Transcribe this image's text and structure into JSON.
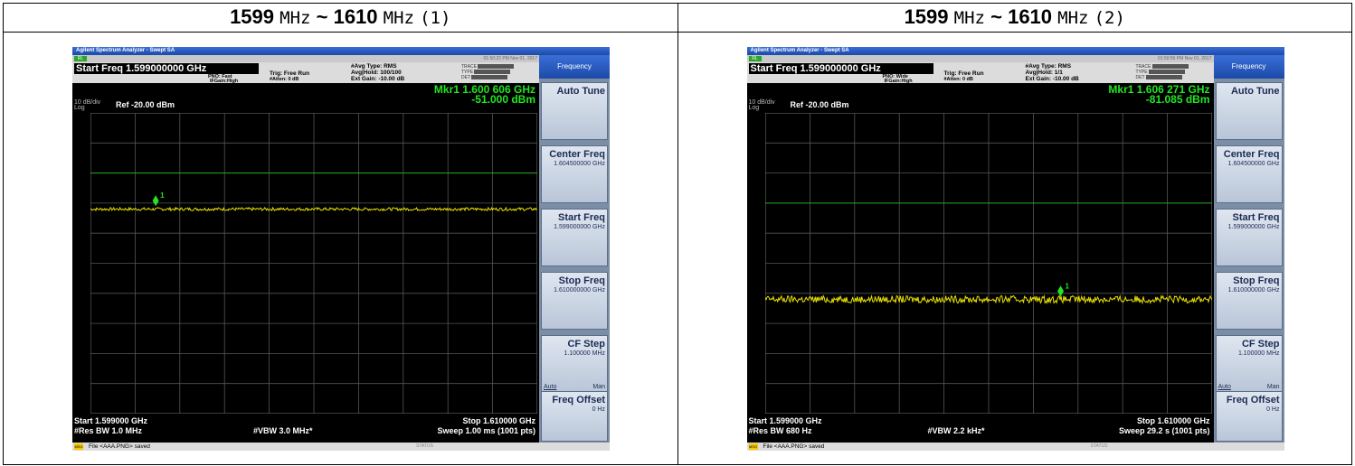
{
  "panels": [
    {
      "header_num_a": "1599",
      "header_unit_a": "MHz",
      "header_sep": "~",
      "header_num_b": "1610",
      "header_unit_b": "MHz",
      "header_index": "(1)",
      "app_title": "Agilent Spectrum Analyzer - Swept SA",
      "rl_label": "RL",
      "timestamp": "01:50:22 PM Nov 01, 2017",
      "start_freq_label": "Start Freq 1.599000000 GHz",
      "pno": "PNO: Fast",
      "ifgain": "IFGain:High",
      "trig": "Trig: Free Run",
      "atten": "#Atten: 0 dB",
      "avg_type": "#Avg Type: RMS",
      "avg_hold": "Avg|Hold: 100/100",
      "ext_gain": "Ext Gain: -10.00 dB",
      "trace_label": "TRACE",
      "type_label": "TYPE",
      "det_label": "DET",
      "mkr_freq": "Mkr1 1.600 606 GHz",
      "mkr_amp": "-51.000 dBm",
      "scale": "10 dB/div",
      "log": "Log",
      "ref": "Ref -20.00 dBm",
      "start_bottom": "Start 1.599000 GHz",
      "res_bw": "#Res BW 1.0 MHz",
      "vbw": "#VBW 3.0 MHz*",
      "stop_bottom": "Stop 1.610000 GHz",
      "sweep": "Sweep  1.00 ms (1001 pts)",
      "msg_text": "File <AAA.PNG> saved",
      "status_text": "STATUS",
      "softkey_header": "Frequency",
      "softkeys": [
        {
          "title": "Auto Tune",
          "value": ""
        },
        {
          "title": "Center Freq",
          "value": "1.604500000 GHz"
        },
        {
          "title": "Start Freq",
          "value": "1.599000000 GHz"
        },
        {
          "title": "Stop Freq",
          "value": "1.610000000 GHz"
        },
        {
          "title": "CF Step",
          "value": "1.100000 MHz",
          "auto": "Auto",
          "man": "Man"
        },
        {
          "title": "Freq Offset",
          "value": "0 Hz"
        }
      ],
      "chart_data": {
        "type": "line",
        "ref_level_dbm": -20,
        "db_per_div": 10,
        "ylim": [
          -120,
          -20
        ],
        "x_start_ghz": 1.599,
        "x_stop_ghz": 1.61,
        "noise_floor_dbm": -52,
        "noise_amplitude_db": 0.5,
        "limit_line_dbm": -40,
        "marker_x_ghz": 1.600606,
        "marker_y_dbm": -51.0
      }
    },
    {
      "header_num_a": "1599",
      "header_unit_a": "MHz",
      "header_sep": "~",
      "header_num_b": "1610",
      "header_unit_b": "MHz",
      "header_index": "(2)",
      "app_title": "Agilent Spectrum Analyzer - Swept SA",
      "rl_label": "RL",
      "timestamp": "01:50:56 PM Nov 01, 2017",
      "start_freq_label": "Start Freq 1.599000000 GHz",
      "pno": "PNO: Wide",
      "ifgain": "IFGain:High",
      "trig": "Trig: Free Run",
      "atten": "#Atten: 0 dB",
      "avg_type": "#Avg Type: RMS",
      "avg_hold": "Avg|Hold: 1/1",
      "ext_gain": "Ext Gain: -10.00 dB",
      "trace_label": "TRACE",
      "type_label": "TYPE",
      "det_label": "DET",
      "mkr_freq": "Mkr1 1.606 271 GHz",
      "mkr_amp": "-81.085 dBm",
      "scale": "10 dB/div",
      "log": "Log",
      "ref": "Ref -20.00 dBm",
      "start_bottom": "Start 1.599000 GHz",
      "res_bw": "#Res BW 680 Hz",
      "vbw": "#VBW 2.2 kHz*",
      "stop_bottom": "Stop 1.610000 GHz",
      "sweep": "Sweep  29.2 s (1001 pts)",
      "msg_text": "File <AAA.PNG> saved",
      "status_text": "STATUS",
      "softkey_header": "Frequency",
      "softkeys": [
        {
          "title": "Auto Tune",
          "value": ""
        },
        {
          "title": "Center Freq",
          "value": "1.604500000 GHz"
        },
        {
          "title": "Start Freq",
          "value": "1.599000000 GHz"
        },
        {
          "title": "Stop Freq",
          "value": "1.610000000 GHz"
        },
        {
          "title": "CF Step",
          "value": "1.100000 MHz",
          "auto": "Auto",
          "man": "Man"
        },
        {
          "title": "Freq Offset",
          "value": "0 Hz"
        }
      ],
      "chart_data": {
        "type": "line",
        "ref_level_dbm": -20,
        "db_per_div": 10,
        "ylim": [
          -120,
          -20
        ],
        "x_start_ghz": 1.599,
        "x_stop_ghz": 1.61,
        "noise_floor_dbm": -82,
        "noise_amplitude_db": 1.2,
        "limit_line_dbm": -50,
        "marker_x_ghz": 1.606271,
        "marker_y_dbm": -81.085
      }
    }
  ],
  "colors": {
    "trace": "#e8e000",
    "limit": "#22aa22",
    "marker": "#22e622",
    "grid": "#555555"
  }
}
